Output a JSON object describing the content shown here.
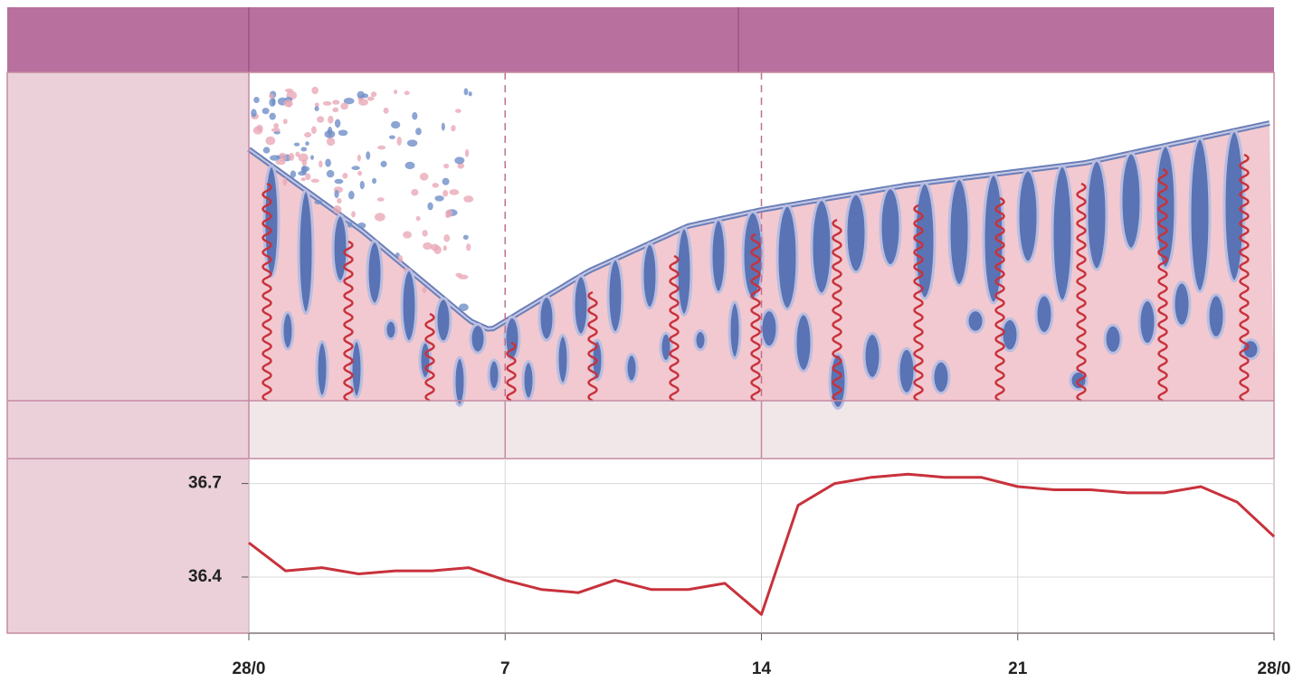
{
  "chart_data": {
    "type": "line",
    "x": [
      0,
      1,
      2,
      3,
      4,
      5,
      6,
      7,
      8,
      9,
      10,
      11,
      12,
      13,
      14,
      15,
      16,
      17,
      18,
      19,
      20,
      21,
      22,
      23,
      24,
      25,
      26,
      27,
      28
    ],
    "values": [
      36.51,
      36.42,
      36.43,
      36.41,
      36.42,
      36.42,
      36.43,
      36.39,
      36.36,
      36.35,
      36.39,
      36.36,
      36.36,
      36.38,
      36.28,
      36.63,
      36.7,
      36.72,
      36.73,
      36.72,
      36.72,
      36.69,
      36.68,
      36.68,
      36.67,
      36.67,
      36.69,
      36.64,
      36.53
    ],
    "color": "#c8323c",
    "xlim": [
      0,
      28
    ],
    "ylim": [
      36.22,
      36.78
    ],
    "xticks": [
      {
        "value": 0,
        "label": "28/0"
      },
      7,
      14,
      21,
      {
        "value": 28,
        "label": "28/0"
      }
    ],
    "yticks": [
      36.4,
      36.7
    ],
    "grid": true
  }
}
